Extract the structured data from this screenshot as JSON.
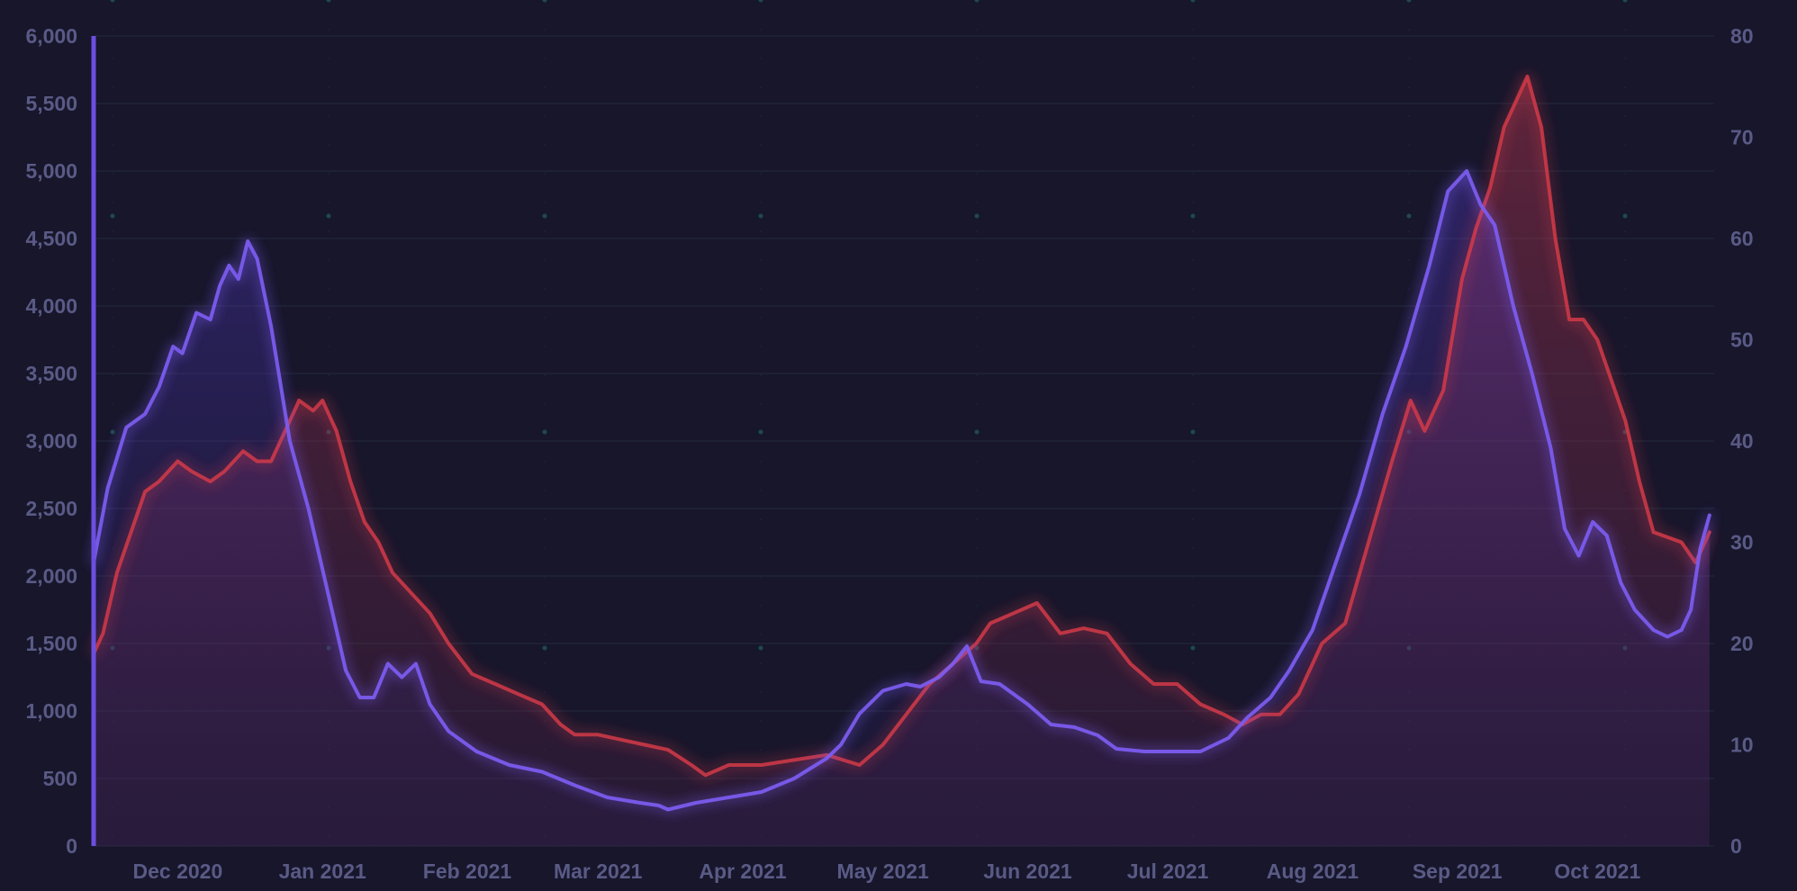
{
  "chart_data": {
    "type": "line",
    "title": "",
    "xlabel": "",
    "ylabel": "",
    "y2label": "",
    "x_start": "2020-11-13",
    "x_end": "2021-10-26",
    "x_ticks": [
      {
        "date": "2020-12-01",
        "label": "Dec 2020"
      },
      {
        "date": "2021-01-01",
        "label": "Jan 2021"
      },
      {
        "date": "2021-02-01",
        "label": "Feb 2021"
      },
      {
        "date": "2021-03-01",
        "label": "Mar 2021"
      },
      {
        "date": "2021-04-01",
        "label": "Apr 2021"
      },
      {
        "date": "2021-05-01",
        "label": "May 2021"
      },
      {
        "date": "2021-06-01",
        "label": "Jun 2021"
      },
      {
        "date": "2021-07-01",
        "label": "Jul 2021"
      },
      {
        "date": "2021-08-01",
        "label": "Aug 2021"
      },
      {
        "date": "2021-09-01",
        "label": "Sep 2021"
      },
      {
        "date": "2021-10-01",
        "label": "Oct 2021"
      }
    ],
    "y_left": {
      "min": 0,
      "max": 6000,
      "ticks": [
        0,
        500,
        1000,
        1500,
        2000,
        2500,
        3000,
        3500,
        4000,
        4500,
        5000,
        5500,
        6000
      ],
      "tick_labels": [
        "0",
        "500",
        "1,000",
        "1,500",
        "2,000",
        "2,500",
        "3,000",
        "3,500",
        "4,000",
        "4,500",
        "5,000",
        "5,500",
        "6,000"
      ]
    },
    "y_right": {
      "min": 0,
      "max": 80,
      "ticks": [
        0,
        10,
        20,
        30,
        40,
        50,
        60,
        70,
        80
      ],
      "tick_labels": [
        "0",
        "10",
        "20",
        "30",
        "40",
        "50",
        "60",
        "70",
        "80"
      ]
    },
    "grid": true,
    "legend": "none",
    "series": [
      {
        "axis": "left",
        "color": "#7b5cf0",
        "points": [
          [
            "2020-11-13",
            2100
          ],
          [
            "2020-11-16",
            2650
          ],
          [
            "2020-11-20",
            3100
          ],
          [
            "2020-11-24",
            3200
          ],
          [
            "2020-11-27",
            3400
          ],
          [
            "2020-11-30",
            3700
          ],
          [
            "2020-12-02",
            3650
          ],
          [
            "2020-12-05",
            3950
          ],
          [
            "2020-12-08",
            3900
          ],
          [
            "2020-12-10",
            4150
          ],
          [
            "2020-12-12",
            4300
          ],
          [
            "2020-12-14",
            4200
          ],
          [
            "2020-12-16",
            4480
          ],
          [
            "2020-12-18",
            4350
          ],
          [
            "2020-12-21",
            3850
          ],
          [
            "2020-12-25",
            3000
          ],
          [
            "2020-12-29",
            2500
          ],
          [
            "2021-01-02",
            1900
          ],
          [
            "2021-01-06",
            1300
          ],
          [
            "2021-01-09",
            1100
          ],
          [
            "2021-01-12",
            1100
          ],
          [
            "2021-01-15",
            1350
          ],
          [
            "2021-01-18",
            1250
          ],
          [
            "2021-01-21",
            1350
          ],
          [
            "2021-01-24",
            1050
          ],
          [
            "2021-01-28",
            850
          ],
          [
            "2021-02-03",
            700
          ],
          [
            "2021-02-10",
            600
          ],
          [
            "2021-02-17",
            550
          ],
          [
            "2021-02-24",
            450
          ],
          [
            "2021-03-03",
            360
          ],
          [
            "2021-03-10",
            320
          ],
          [
            "2021-03-14",
            300
          ],
          [
            "2021-03-16",
            270
          ],
          [
            "2021-03-22",
            320
          ],
          [
            "2021-03-29",
            360
          ],
          [
            "2021-04-05",
            400
          ],
          [
            "2021-04-12",
            500
          ],
          [
            "2021-04-19",
            650
          ],
          [
            "2021-04-22",
            750
          ],
          [
            "2021-04-26",
            980
          ],
          [
            "2021-05-01",
            1150
          ],
          [
            "2021-05-06",
            1200
          ],
          [
            "2021-05-09",
            1180
          ],
          [
            "2021-05-13",
            1250
          ],
          [
            "2021-05-16",
            1350
          ],
          [
            "2021-05-19",
            1480
          ],
          [
            "2021-05-22",
            1220
          ],
          [
            "2021-05-26",
            1200
          ],
          [
            "2021-06-01",
            1050
          ],
          [
            "2021-06-06",
            900
          ],
          [
            "2021-06-11",
            880
          ],
          [
            "2021-06-16",
            820
          ],
          [
            "2021-06-20",
            720
          ],
          [
            "2021-06-26",
            700
          ],
          [
            "2021-07-03",
            700
          ],
          [
            "2021-07-08",
            700
          ],
          [
            "2021-07-14",
            800
          ],
          [
            "2021-07-18",
            950
          ],
          [
            "2021-07-23",
            1100
          ],
          [
            "2021-07-27",
            1300
          ],
          [
            "2021-08-01",
            1600
          ],
          [
            "2021-08-06",
            2100
          ],
          [
            "2021-08-11",
            2600
          ],
          [
            "2021-08-16",
            3200
          ],
          [
            "2021-08-21",
            3700
          ],
          [
            "2021-08-26",
            4300
          ],
          [
            "2021-08-30",
            4850
          ],
          [
            "2021-09-03",
            5000
          ],
          [
            "2021-09-06",
            4750
          ],
          [
            "2021-09-09",
            4600
          ],
          [
            "2021-09-13",
            4000
          ],
          [
            "2021-09-17",
            3500
          ],
          [
            "2021-09-21",
            2950
          ],
          [
            "2021-09-24",
            2350
          ],
          [
            "2021-09-27",
            2150
          ],
          [
            "2021-09-30",
            2400
          ],
          [
            "2021-10-03",
            2300
          ],
          [
            "2021-10-06",
            1950
          ],
          [
            "2021-10-09",
            1750
          ],
          [
            "2021-10-13",
            1600
          ],
          [
            "2021-10-16",
            1550
          ],
          [
            "2021-10-19",
            1600
          ],
          [
            "2021-10-21",
            1750
          ],
          [
            "2021-10-23",
            2200
          ],
          [
            "2021-10-25",
            2450
          ]
        ]
      },
      {
        "axis": "right",
        "color": "#d83a4a",
        "points": [
          [
            "2020-11-13",
            19
          ],
          [
            "2020-11-15",
            21
          ],
          [
            "2020-11-18",
            27
          ],
          [
            "2020-11-21",
            31
          ],
          [
            "2020-11-24",
            35
          ],
          [
            "2020-11-27",
            36
          ],
          [
            "2020-12-01",
            38
          ],
          [
            "2020-12-04",
            37
          ],
          [
            "2020-12-08",
            36
          ],
          [
            "2020-12-11",
            37
          ],
          [
            "2020-12-15",
            39
          ],
          [
            "2020-12-18",
            38
          ],
          [
            "2020-12-21",
            38
          ],
          [
            "2020-12-24",
            41
          ],
          [
            "2020-12-27",
            44
          ],
          [
            "2020-12-30",
            43
          ],
          [
            "2021-01-01",
            44
          ],
          [
            "2021-01-04",
            41
          ],
          [
            "2021-01-07",
            36
          ],
          [
            "2021-01-10",
            32
          ],
          [
            "2021-01-13",
            30
          ],
          [
            "2021-01-16",
            27
          ],
          [
            "2021-01-20",
            25
          ],
          [
            "2021-01-24",
            23
          ],
          [
            "2021-01-28",
            20
          ],
          [
            "2021-02-02",
            17
          ],
          [
            "2021-02-07",
            16
          ],
          [
            "2021-02-12",
            15
          ],
          [
            "2021-02-17",
            14
          ],
          [
            "2021-02-21",
            12
          ],
          [
            "2021-02-24",
            11
          ],
          [
            "2021-03-01",
            11
          ],
          [
            "2021-03-06",
            10.5
          ],
          [
            "2021-03-11",
            10
          ],
          [
            "2021-03-16",
            9.5
          ],
          [
            "2021-03-21",
            8
          ],
          [
            "2021-03-24",
            7
          ],
          [
            "2021-03-29",
            8
          ],
          [
            "2021-04-05",
            8
          ],
          [
            "2021-04-12",
            8.5
          ],
          [
            "2021-04-19",
            9
          ],
          [
            "2021-04-26",
            8
          ],
          [
            "2021-05-01",
            10
          ],
          [
            "2021-05-06",
            13
          ],
          [
            "2021-05-11",
            16
          ],
          [
            "2021-05-16",
            18
          ],
          [
            "2021-05-21",
            20
          ],
          [
            "2021-05-24",
            22
          ],
          [
            "2021-05-29",
            23
          ],
          [
            "2021-06-03",
            24
          ],
          [
            "2021-06-08",
            21
          ],
          [
            "2021-06-13",
            21.5
          ],
          [
            "2021-06-18",
            21
          ],
          [
            "2021-06-23",
            18
          ],
          [
            "2021-06-28",
            16
          ],
          [
            "2021-07-03",
            16
          ],
          [
            "2021-07-08",
            14
          ],
          [
            "2021-07-13",
            13
          ],
          [
            "2021-07-17",
            12
          ],
          [
            "2021-07-21",
            13
          ],
          [
            "2021-07-25",
            13
          ],
          [
            "2021-07-29",
            15
          ],
          [
            "2021-08-03",
            20
          ],
          [
            "2021-08-08",
            22
          ],
          [
            "2021-08-13",
            30
          ],
          [
            "2021-08-18",
            38
          ],
          [
            "2021-08-22",
            44
          ],
          [
            "2021-08-25",
            41
          ],
          [
            "2021-08-29",
            45
          ],
          [
            "2021-09-02",
            56
          ],
          [
            "2021-09-05",
            61
          ],
          [
            "2021-09-08",
            65
          ],
          [
            "2021-09-11",
            71
          ],
          [
            "2021-09-14",
            74
          ],
          [
            "2021-09-16",
            76
          ],
          [
            "2021-09-19",
            71
          ],
          [
            "2021-09-22",
            60
          ],
          [
            "2021-09-25",
            52
          ],
          [
            "2021-09-28",
            52
          ],
          [
            "2021-10-01",
            50
          ],
          [
            "2021-10-04",
            46
          ],
          [
            "2021-10-07",
            42
          ],
          [
            "2021-10-10",
            36
          ],
          [
            "2021-10-13",
            31
          ],
          [
            "2021-10-16",
            30.5
          ],
          [
            "2021-10-19",
            30
          ],
          [
            "2021-10-22",
            28
          ],
          [
            "2021-10-25",
            31
          ]
        ]
      }
    ]
  }
}
